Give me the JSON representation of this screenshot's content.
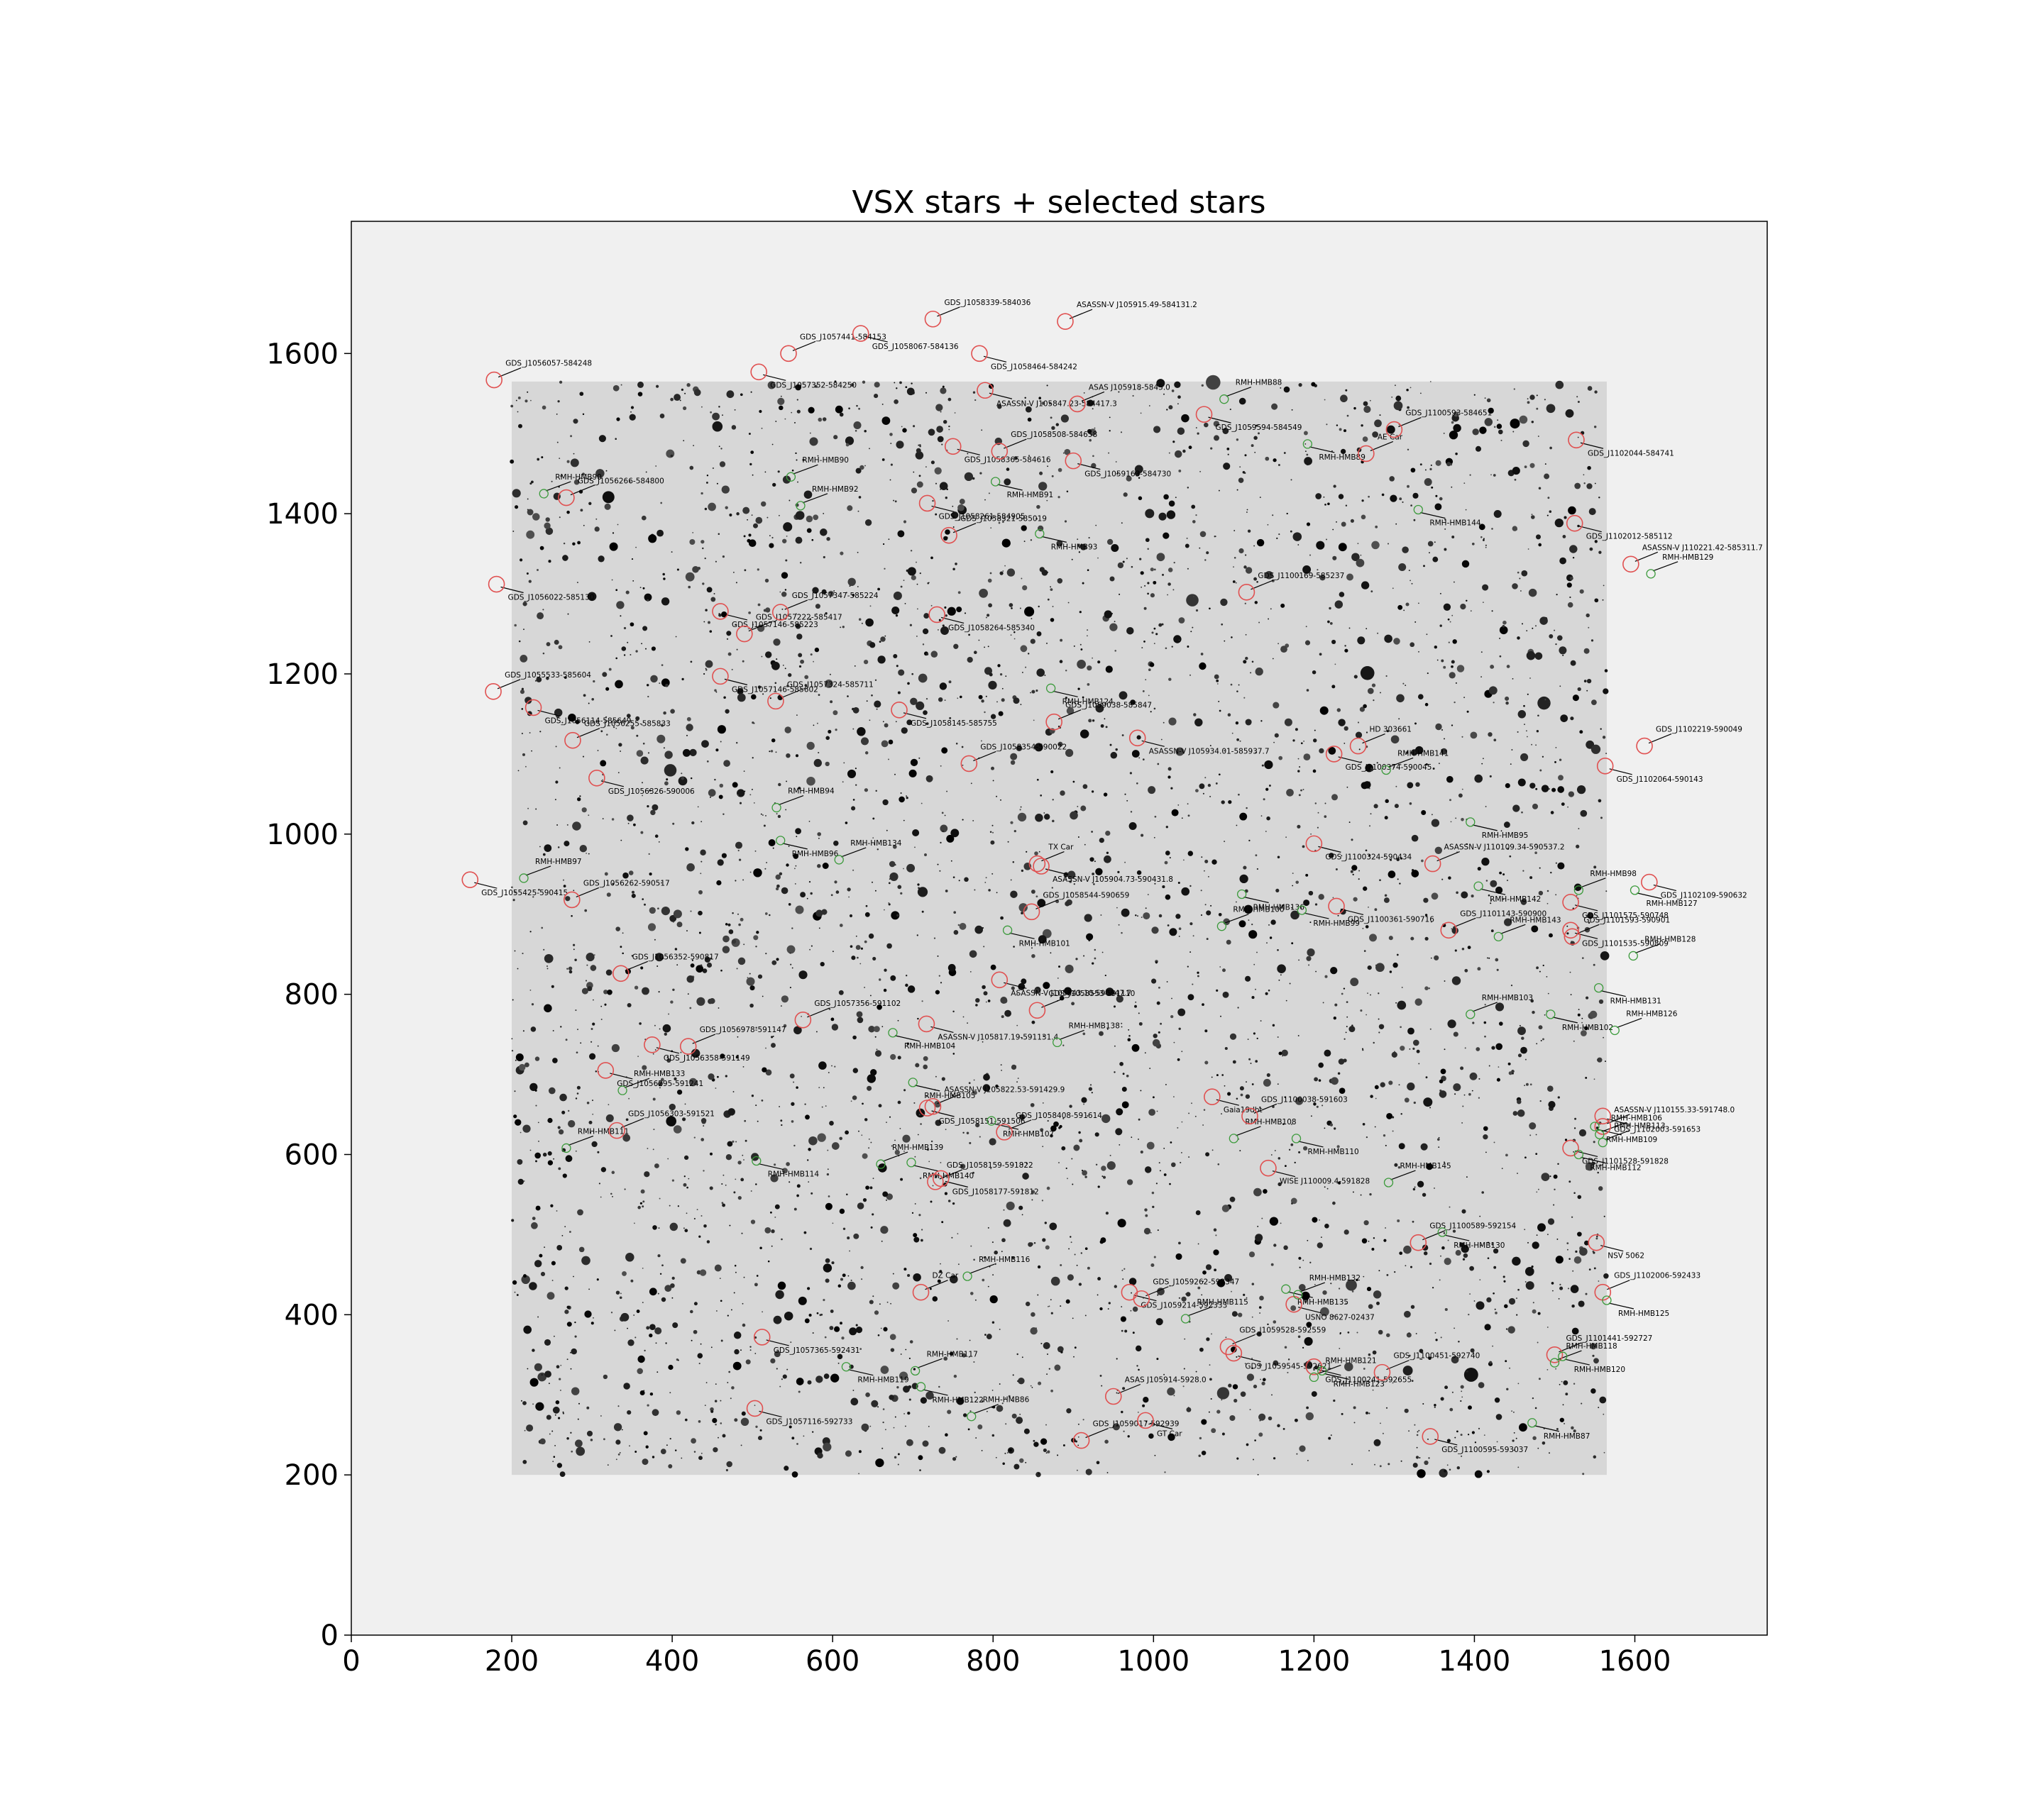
{
  "chart_data": {
    "type": "scatter",
    "title": "VSX stars + selected stars",
    "xlabel": "",
    "ylabel": "",
    "xlim": [
      0,
      1765
    ],
    "ylim": [
      0,
      1765
    ],
    "xticks": [
      0,
      200,
      400,
      600,
      800,
      1000,
      1200,
      1400,
      1600
    ],
    "yticks": [
      0,
      200,
      400,
      600,
      800,
      1000,
      1200,
      1400,
      1600
    ],
    "grid": false,
    "background_image": "inverted grayscale star field spanning x 200-1565, y 200-1565",
    "colors": {
      "vsx": "#e05050",
      "selected": "#3a9a3a",
      "axes_bg": "#f0f0f0",
      "image_bg": "#d7d7d7"
    },
    "series": [
      {
        "name": "VSX stars",
        "marker": "circle",
        "points": [
          {
            "x": 178,
            "y": 1567,
            "label": "GDS_J1056057-584248"
          },
          {
            "x": 508,
            "y": 1577,
            "label": "GDS_J1057352-584250"
          },
          {
            "x": 545,
            "y": 1600,
            "label": "GDS_J1057441-584153"
          },
          {
            "x": 635,
            "y": 1625,
            "label": "GDS_J1058067-584136"
          },
          {
            "x": 725,
            "y": 1643,
            "label": "GDS_J1058339-584036"
          },
          {
            "x": 783,
            "y": 1600,
            "label": "GDS_J1058464-584242"
          },
          {
            "x": 890,
            "y": 1640,
            "label": "ASASSN-V J105915.49-584131.2"
          },
          {
            "x": 790,
            "y": 1554,
            "label": "ASASSN-V J105847.23-584417.3"
          },
          {
            "x": 905,
            "y": 1537,
            "label": "ASAS J105918-5845.0"
          },
          {
            "x": 1063,
            "y": 1524,
            "label": "GDS_J1059594-584549"
          },
          {
            "x": 1300,
            "y": 1505,
            "label": "GDS_J1100593-584651"
          },
          {
            "x": 1527,
            "y": 1492,
            "label": "GDS_J1102044-584741"
          },
          {
            "x": 1265,
            "y": 1475,
            "label": "AE Car"
          },
          {
            "x": 750,
            "y": 1484,
            "label": "GDS_J1058365-584616"
          },
          {
            "x": 808,
            "y": 1478,
            "label": "GDS_J1058508-584658"
          },
          {
            "x": 900,
            "y": 1466,
            "label": "GDS_J1059163-584730"
          },
          {
            "x": 268,
            "y": 1420,
            "label": "GDS_J1056266-584800"
          },
          {
            "x": 718,
            "y": 1413,
            "label": "GDS_J1058261-584905"
          },
          {
            "x": 745,
            "y": 1373,
            "label": "GDS_J1058321-585019"
          },
          {
            "x": 1525,
            "y": 1388,
            "label": "GDS_J1102012-585112"
          },
          {
            "x": 1595,
            "y": 1337,
            "label": "ASASSN-V J110221.42-585311.7"
          },
          {
            "x": 181,
            "y": 1312,
            "label": "GDS_J1056022-585130"
          },
          {
            "x": 1116,
            "y": 1302,
            "label": "GDS_J1100169-585237"
          },
          {
            "x": 460,
            "y": 1278,
            "label": "GDS_J1057146-585223"
          },
          {
            "x": 535,
            "y": 1277,
            "label": "GDS_J1057347-585224"
          },
          {
            "x": 730,
            "y": 1274,
            "label": "GDS_J1058264-585340"
          },
          {
            "x": 490,
            "y": 1250,
            "label": "GDS_J1057222-585417"
          },
          {
            "x": 460,
            "y": 1197,
            "label": "GDS_J1057146-585602"
          },
          {
            "x": 529,
            "y": 1166,
            "label": "GDS_J1057324-585711"
          },
          {
            "x": 683,
            "y": 1155,
            "label": "GDS_J1058145-585755"
          },
          {
            "x": 876,
            "y": 1140,
            "label": "GDS_J1059038-585847"
          },
          {
            "x": 980,
            "y": 1120,
            "label": "ASASSN-V J105934.01-585937.7"
          },
          {
            "x": 177,
            "y": 1178,
            "label": "GDS_J1055533-585604"
          },
          {
            "x": 227,
            "y": 1158,
            "label": "GDS_J1056114-585649"
          },
          {
            "x": 276,
            "y": 1117,
            "label": "GDS_J1056255-585833"
          },
          {
            "x": 306,
            "y": 1070,
            "label": "GDS_J1056326-590006"
          },
          {
            "x": 770,
            "y": 1088,
            "label": "GDS_J1058354-590022"
          },
          {
            "x": 1225,
            "y": 1100,
            "label": "GDS_J1100374-590045"
          },
          {
            "x": 1255,
            "y": 1110,
            "label": "HD 303661"
          },
          {
            "x": 1563,
            "y": 1085,
            "label": "GDS_J1102064-590143"
          },
          {
            "x": 1612,
            "y": 1110,
            "label": "GDS_J1102219-590049"
          },
          {
            "x": 1200,
            "y": 988,
            "label": "GDS_J1100324-590434"
          },
          {
            "x": 1348,
            "y": 963,
            "label": "ASASSN-V J110109.34-590537.2"
          },
          {
            "x": 860,
            "y": 960,
            "label": "ASASSN-V J105904.73-590431.8"
          },
          {
            "x": 855,
            "y": 963,
            "label": "TX Car"
          },
          {
            "x": 148,
            "y": 943,
            "label": "GDS_J1055425-590415"
          },
          {
            "x": 275,
            "y": 918,
            "label": "GDS_J1056262-590517"
          },
          {
            "x": 1228,
            "y": 910,
            "label": "GDS_J1100361-590716"
          },
          {
            "x": 848,
            "y": 903,
            "label": "GDS_J1058544-590659"
          },
          {
            "x": 1520,
            "y": 915,
            "label": "GDS_J1101575-590748"
          },
          {
            "x": 1368,
            "y": 880,
            "label": "GDS_J1101143-590900"
          },
          {
            "x": 1520,
            "y": 880,
            "label": "GDS_J1101535-590809"
          },
          {
            "x": 1522,
            "y": 872,
            "label": "GDS_J1101593-590901"
          },
          {
            "x": 1618,
            "y": 940,
            "label": "GDS_J1102109-590632"
          },
          {
            "x": 336,
            "y": 826,
            "label": "GDS_J1056352-590817"
          },
          {
            "x": 808,
            "y": 818,
            "label": "ASASSN-V J105843.10-590947.7"
          },
          {
            "x": 563,
            "y": 768,
            "label": "GDS_J1057356-591102"
          },
          {
            "x": 717,
            "y": 763,
            "label": "ASASSN-V J105817.19-591131.4"
          },
          {
            "x": 855,
            "y": 780,
            "label": "GDS_J1058553-591110"
          },
          {
            "x": 375,
            "y": 737,
            "label": "GDS_J1056358-591149"
          },
          {
            "x": 420,
            "y": 735,
            "label": "GDS_J1056978-591147"
          },
          {
            "x": 317,
            "y": 705,
            "label": "GDS_J1056295-591241"
          },
          {
            "x": 725,
            "y": 660,
            "label": "ASASSN-V J105822.53-591429.9"
          },
          {
            "x": 718,
            "y": 658,
            "label": "GDS_J1058151-591506"
          },
          {
            "x": 814,
            "y": 628,
            "label": "GDS_J1058408-591614"
          },
          {
            "x": 1073,
            "y": 672,
            "label": "Gaia19dbt"
          },
          {
            "x": 1120,
            "y": 648,
            "label": "GDS_J1100038-591603"
          },
          {
            "x": 1560,
            "y": 648,
            "label": "GDS_J1102003-591653"
          },
          {
            "x": 1560,
            "y": 635,
            "label": "ASASSN-V J110155.33-591748.0"
          },
          {
            "x": 1520,
            "y": 608,
            "label": "GDS_J1101528-591828"
          },
          {
            "x": 331,
            "y": 630,
            "label": "GDS_J1056303-591521"
          },
          {
            "x": 1143,
            "y": 583,
            "label": "WISE J110009.4-591828"
          },
          {
            "x": 728,
            "y": 566,
            "label": "GDS_J1058159-591822"
          },
          {
            "x": 735,
            "y": 570,
            "label": "GDS_J1058177-591812"
          },
          {
            "x": 1330,
            "y": 490,
            "label": "GDS_J1100589-592154"
          },
          {
            "x": 1552,
            "y": 490,
            "label": "NSV 5062"
          },
          {
            "x": 710,
            "y": 428,
            "label": "DZ Car"
          },
          {
            "x": 970,
            "y": 428,
            "label": "GDS_J1059214-592333"
          },
          {
            "x": 985,
            "y": 420,
            "label": "GDS_J1059262-592347"
          },
          {
            "x": 1175,
            "y": 413,
            "label": "USNO 8627-02437"
          },
          {
            "x": 1560,
            "y": 428,
            "label": "GDS_J1102006-592433"
          },
          {
            "x": 512,
            "y": 372,
            "label": "GDS_J1057365-592431"
          },
          {
            "x": 1093,
            "y": 360,
            "label": "GDS_J1059528-592559"
          },
          {
            "x": 1100,
            "y": 352,
            "label": "GDS_J1059545-592621"
          },
          {
            "x": 1285,
            "y": 328,
            "label": "GDS_J1100451-592740"
          },
          {
            "x": 1200,
            "y": 335,
            "label": "GDS_J1100241-592655"
          },
          {
            "x": 1500,
            "y": 350,
            "label": "GDS_J1101441-592727"
          },
          {
            "x": 503,
            "y": 283,
            "label": "GDS_J1057116-592733"
          },
          {
            "x": 950,
            "y": 298,
            "label": "ASAS J105914-5928.0"
          },
          {
            "x": 990,
            "y": 268,
            "label": "GT Car"
          },
          {
            "x": 910,
            "y": 243,
            "label": "GDS_J1059017-592939"
          },
          {
            "x": 1345,
            "y": 248,
            "label": "GDS_J1100595-593037"
          }
        ]
      },
      {
        "name": "selected stars",
        "marker": "circle",
        "points": [
          {
            "x": 1088,
            "y": 1543,
            "label": "RMH-HMB88"
          },
          {
            "x": 1192,
            "y": 1487,
            "label": "RMH-HMB89"
          },
          {
            "x": 548,
            "y": 1446,
            "label": "RMH-HMB90"
          },
          {
            "x": 803,
            "y": 1440,
            "label": "RMH-HMB91"
          },
          {
            "x": 560,
            "y": 1410,
            "label": "RMH-HMB92"
          },
          {
            "x": 858,
            "y": 1375,
            "label": "RMH-HMB93"
          },
          {
            "x": 240,
            "y": 1425,
            "label": "RMH-HMB90"
          },
          {
            "x": 1330,
            "y": 1405,
            "label": "RMH-HMB144"
          },
          {
            "x": 1620,
            "y": 1325,
            "label": "RMH-HMB129"
          },
          {
            "x": 872,
            "y": 1182,
            "label": "RMH-HMB124"
          },
          {
            "x": 1290,
            "y": 1080,
            "label": "RMH-HMB141"
          },
          {
            "x": 1395,
            "y": 1015,
            "label": "RMH-HMB95"
          },
          {
            "x": 530,
            "y": 1033,
            "label": "RMH-HMB94"
          },
          {
            "x": 535,
            "y": 992,
            "label": "RMH-HMB96"
          },
          {
            "x": 608,
            "y": 968,
            "label": "RMH-HMB134"
          },
          {
            "x": 1405,
            "y": 935,
            "label": "RMH-HMB142"
          },
          {
            "x": 1530,
            "y": 930,
            "label": "RMH-HMB98"
          },
          {
            "x": 1600,
            "y": 930,
            "label": "RMH-HMB127"
          },
          {
            "x": 215,
            "y": 945,
            "label": "RMH-HMB97"
          },
          {
            "x": 1110,
            "y": 925,
            "label": "RMH-HMB136"
          },
          {
            "x": 1085,
            "y": 885,
            "label": "RMH-HMB100"
          },
          {
            "x": 1185,
            "y": 905,
            "label": "RMH-HMB99"
          },
          {
            "x": 1430,
            "y": 872,
            "label": "RMH-HMB143"
          },
          {
            "x": 818,
            "y": 880,
            "label": "RMH-HMB101"
          },
          {
            "x": 1598,
            "y": 848,
            "label": "RMH-HMB128"
          },
          {
            "x": 1495,
            "y": 775,
            "label": "RMH-HMB102"
          },
          {
            "x": 1395,
            "y": 775,
            "label": "RMH-HMB103"
          },
          {
            "x": 1555,
            "y": 808,
            "label": "RMH-HMB131"
          },
          {
            "x": 1575,
            "y": 755,
            "label": "RMH-HMB126"
          },
          {
            "x": 675,
            "y": 752,
            "label": "RMH-HMB104"
          },
          {
            "x": 880,
            "y": 740,
            "label": "RMH-HMB138"
          },
          {
            "x": 700,
            "y": 690,
            "label": "RMH-HMB105"
          },
          {
            "x": 338,
            "y": 680,
            "label": "RMH-HMB133"
          },
          {
            "x": 798,
            "y": 642,
            "label": "RMH-HMB107"
          },
          {
            "x": 1100,
            "y": 620,
            "label": "RMH-HMB108"
          },
          {
            "x": 1178,
            "y": 620,
            "label": "RMH-HMB110"
          },
          {
            "x": 1556,
            "y": 625,
            "label": "RMH-HMB106"
          },
          {
            "x": 1550,
            "y": 635,
            "label": "RMH-HMB109"
          },
          {
            "x": 1560,
            "y": 615,
            "label": "RMH-HMB113"
          },
          {
            "x": 1530,
            "y": 600,
            "label": "RMH-HMB112"
          },
          {
            "x": 268,
            "y": 608,
            "label": "RMH-HMB111"
          },
          {
            "x": 505,
            "y": 592,
            "label": "RMH-HMB114"
          },
          {
            "x": 660,
            "y": 588,
            "label": "RMH-HMB139"
          },
          {
            "x": 698,
            "y": 590,
            "label": "RMH-HMB140"
          },
          {
            "x": 1293,
            "y": 565,
            "label": "RMH-HMB145"
          },
          {
            "x": 1360,
            "y": 503,
            "label": "RMH-HMB130"
          },
          {
            "x": 768,
            "y": 448,
            "label": "RMH-HMB116"
          },
          {
            "x": 1165,
            "y": 432,
            "label": "RMH-HMB135"
          },
          {
            "x": 1180,
            "y": 425,
            "label": "RMH-HMB132"
          },
          {
            "x": 1565,
            "y": 418,
            "label": "RMH-HMB125"
          },
          {
            "x": 1040,
            "y": 395,
            "label": "RMH-HMB115"
          },
          {
            "x": 1510,
            "y": 348,
            "label": "RMH-HMB120"
          },
          {
            "x": 1500,
            "y": 340,
            "label": "RMH-HMB118"
          },
          {
            "x": 617,
            "y": 335,
            "label": "RMH-HMB119"
          },
          {
            "x": 703,
            "y": 330,
            "label": "RMH-HMB117"
          },
          {
            "x": 1210,
            "y": 330,
            "label": "RMH-HMB123"
          },
          {
            "x": 1200,
            "y": 322,
            "label": "RMH-HMB121"
          },
          {
            "x": 710,
            "y": 310,
            "label": "RMH-HMB122"
          },
          {
            "x": 773,
            "y": 273,
            "label": "RMH-HMB86"
          },
          {
            "x": 1472,
            "y": 265,
            "label": "RMH-HMB87"
          }
        ]
      }
    ]
  }
}
